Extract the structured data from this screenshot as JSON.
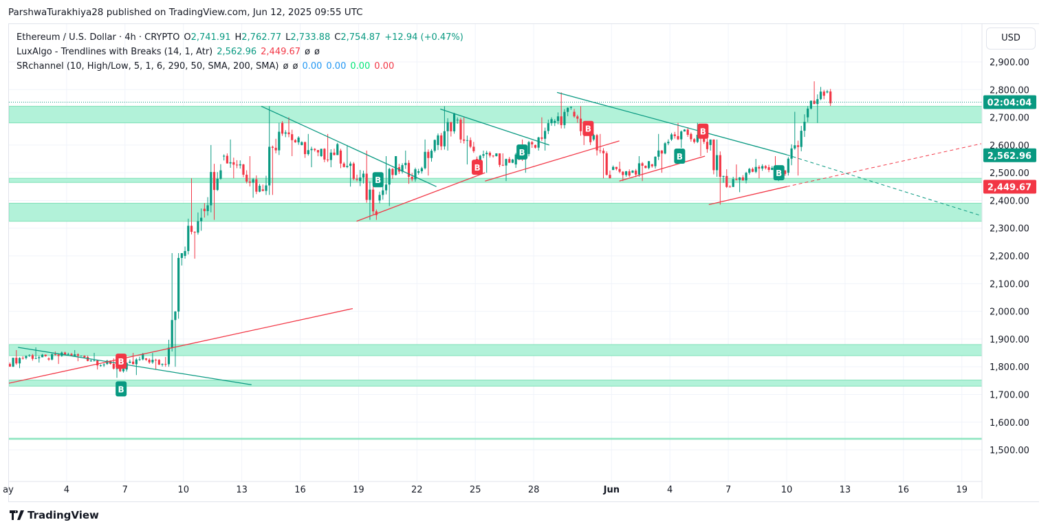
{
  "header": {
    "published": "ParshwaTurakhiya28 published on TradingView.com, Jun 12, 2025 09:55 UTC"
  },
  "legend": {
    "symbol": "Ethereum / U.S. Dollar · 4h · CRYPTO",
    "o_label": "O",
    "o": "2,741.91",
    "h_label": "H",
    "h": "2,762.77",
    "l_label": "L",
    "l": "2,733.88",
    "c_label": "C",
    "c": "2,754.87",
    "change": "+12.94 (+0.47%)",
    "ind1": "LuxAlgo - Trendlines with Breaks (14, 1, Atr)",
    "ind1_v1": "2,562.96",
    "ind1_v2": "2,449.67",
    "ind1_v3": "ø",
    "ind1_v4": "ø",
    "ind2": "SRchannel (10, High/Low, 5, 1, 6, 290, 50, SMA, 200, SMA)",
    "ind2_v1": "ø",
    "ind2_v2": "ø",
    "ind2_v3": "0.00",
    "ind2_v4": "0.00",
    "ind2_v5": "0.00",
    "ind2_v6": "0.00"
  },
  "currency": "USD",
  "footer": {
    "brand": "TradingView"
  },
  "colors": {
    "up": "#089981",
    "down": "#f23645",
    "zone": "#b2f2d9",
    "zone_border": "#7ee0b6",
    "resistance": "#089981",
    "support": "#f23645"
  },
  "chart_data": {
    "type": "candlestick",
    "title": "Ethereum / U.S. Dollar · 4h",
    "ylim": [
      1420,
      2980
    ],
    "y_ticks": [
      2900,
      2800,
      2700,
      2600,
      2500,
      2400,
      2300,
      2200,
      2100,
      2000,
      1900,
      1800,
      1700,
      1600,
      1500
    ],
    "y_tick_labels": [
      "2,900.00",
      "2,800.00",
      "2,700.00",
      "2,600.00",
      "2,500.00",
      "2,400.00",
      "2,300.00",
      "2,200.00",
      "2,100.00",
      "2,000.00",
      "1,900.00",
      "1,800.00",
      "1,700.00",
      "1,600.00",
      "1,500.00"
    ],
    "x_unit": "days since May 1",
    "xlim": [
      0,
      50
    ],
    "x_ticks": [
      {
        "d": 0,
        "label": "ay"
      },
      {
        "d": 3,
        "label": "4"
      },
      {
        "d": 6,
        "label": "7"
      },
      {
        "d": 9,
        "label": "10"
      },
      {
        "d": 12,
        "label": "13"
      },
      {
        "d": 15,
        "label": "16"
      },
      {
        "d": 18,
        "label": "19"
      },
      {
        "d": 21,
        "label": "22"
      },
      {
        "d": 24,
        "label": "25"
      },
      {
        "d": 27,
        "label": "28"
      },
      {
        "d": 31,
        "label": "Jun"
      },
      {
        "d": 34,
        "label": "4"
      },
      {
        "d": 37,
        "label": "7"
      },
      {
        "d": 40,
        "label": "10"
      },
      {
        "d": 43,
        "label": "13"
      },
      {
        "d": 46,
        "label": "16"
      },
      {
        "d": 49,
        "label": "19"
      }
    ],
    "daily_ohlc": [
      [
        1810,
        1860,
        1795,
        1840
      ],
      [
        1840,
        1870,
        1815,
        1830
      ],
      [
        1830,
        1855,
        1810,
        1845
      ],
      [
        1845,
        1860,
        1820,
        1835
      ],
      [
        1835,
        1850,
        1790,
        1810
      ],
      [
        1810,
        1830,
        1760,
        1790
      ],
      [
        1790,
        1850,
        1770,
        1830
      ],
      [
        1830,
        1850,
        1790,
        1810
      ],
      [
        1810,
        2210,
        1800,
        2200
      ],
      [
        2200,
        2480,
        2190,
        2380
      ],
      [
        2370,
        2600,
        2330,
        2560
      ],
      [
        2560,
        2620,
        2480,
        2530
      ],
      [
        2530,
        2560,
        2410,
        2440
      ],
      [
        2440,
        2740,
        2420,
        2680
      ],
      [
        2680,
        2700,
        2560,
        2600
      ],
      [
        2600,
        2640,
        2520,
        2560
      ],
      [
        2560,
        2640,
        2520,
        2580
      ],
      [
        2580,
        2600,
        2450,
        2470
      ],
      [
        2470,
        2580,
        2330,
        2400
      ],
      [
        2400,
        2560,
        2380,
        2520
      ],
      [
        2520,
        2580,
        2460,
        2500
      ],
      [
        2500,
        2620,
        2490,
        2600
      ],
      [
        2600,
        2740,
        2580,
        2690
      ],
      [
        2690,
        2700,
        2530,
        2550
      ],
      [
        2550,
        2580,
        2500,
        2560
      ],
      [
        2560,
        2570,
        2470,
        2530
      ],
      [
        2530,
        2620,
        2500,
        2600
      ],
      [
        2600,
        2700,
        2580,
        2680
      ],
      [
        2680,
        2790,
        2660,
        2720
      ],
      [
        2720,
        2740,
        2600,
        2620
      ],
      [
        2620,
        2640,
        2480,
        2510
      ],
      [
        2510,
        2540,
        2470,
        2500
      ],
      [
        2500,
        2560,
        2470,
        2530
      ],
      [
        2530,
        2640,
        2500,
        2620
      ],
      [
        2620,
        2680,
        2590,
        2640
      ],
      [
        2640,
        2680,
        2560,
        2600
      ],
      [
        2600,
        2620,
        2385,
        2450
      ],
      [
        2450,
        2530,
        2430,
        2500
      ],
      [
        2500,
        2550,
        2480,
        2520
      ],
      [
        2520,
        2560,
        2470,
        2500
      ],
      [
        2500,
        2720,
        2490,
        2700
      ],
      [
        2700,
        2830,
        2680,
        2790
      ],
      [
        2790,
        2875,
        2740,
        2755
      ]
    ],
    "last_price": 2754.87,
    "countdown": "02:04:04",
    "price_labels": [
      {
        "value": 2562.96,
        "text": "2,562.96",
        "color": "#089981"
      },
      {
        "value": 2449.67,
        "text": "2,449.67",
        "color": "#f23645"
      }
    ],
    "sr_zones": [
      [
        2680,
        2740
      ],
      [
        2465,
        2480
      ],
      [
        2325,
        2390
      ],
      [
        1840,
        1880
      ],
      [
        1730,
        1752
      ],
      [
        1538,
        1542
      ]
    ],
    "resistance_lines": [
      [
        [
          0.5,
          1870
        ],
        [
          12.5,
          1735
        ]
      ],
      [
        [
          13,
          2740
        ],
        [
          22,
          2450
        ]
      ],
      [
        [
          22.2,
          2730
        ],
        [
          27.8,
          2600
        ]
      ],
      [
        [
          28.2,
          2790
        ],
        [
          40,
          2565
        ]
      ]
    ],
    "resistance_dashed": [
      [
        40,
        2565
      ],
      [
        50,
        2345
      ]
    ],
    "support_lines": [
      [
        [
          0,
          1740
        ],
        [
          17.7,
          2010
        ]
      ],
      [
        [
          17.9,
          2325
        ],
        [
          24.5,
          2500
        ]
      ],
      [
        [
          24.5,
          2470
        ],
        [
          31.4,
          2615
        ]
      ],
      [
        [
          31.4,
          2470
        ],
        [
          35.8,
          2560
        ]
      ],
      [
        [
          36,
          2385
        ],
        [
          40,
          2450
        ]
      ]
    ],
    "support_dashed": [
      [
        40,
        2450
      ],
      [
        50,
        2605
      ]
    ],
    "break_labels": [
      {
        "d": 5.8,
        "p": 1820,
        "type": "bear",
        "text": "B"
      },
      {
        "d": 5.8,
        "p": 1720,
        "type": "bull",
        "text": "B"
      },
      {
        "d": 19,
        "p": 2475,
        "type": "bull",
        "text": "B"
      },
      {
        "d": 24.1,
        "p": 2520,
        "type": "bear",
        "text": "B"
      },
      {
        "d": 26.4,
        "p": 2575,
        "type": "bull",
        "text": "B"
      },
      {
        "d": 29.8,
        "p": 2660,
        "type": "bear",
        "text": "B"
      },
      {
        "d": 34.5,
        "p": 2560,
        "type": "bull",
        "text": "B"
      },
      {
        "d": 35.7,
        "p": 2650,
        "type": "bear",
        "text": "B"
      },
      {
        "d": 39.6,
        "p": 2500,
        "type": "bull",
        "text": "B"
      }
    ]
  }
}
